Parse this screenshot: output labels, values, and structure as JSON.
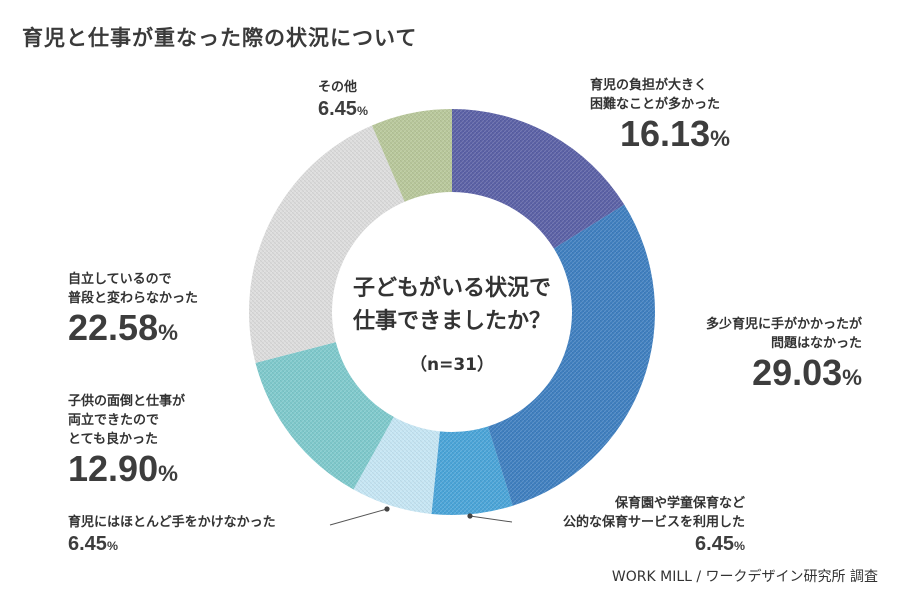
{
  "title": "育児と仕事が重なった際の状況について",
  "center": {
    "question_line1": "子どもがいる状況で",
    "question_line2": "仕事できましたか？",
    "n": "（n=31）"
  },
  "source": "WORK MILL / ワークデザイン研究所 調査",
  "chart_data": {
    "type": "pie",
    "variant": "donut",
    "title": "育児と仕事が重なった際の状況について",
    "slices": [
      {
        "label": "育児の負担が大きく困難なことが多かった",
        "value": 16.13,
        "display": "16.13",
        "color": "#5b61a6",
        "pattern": "crosshatch"
      },
      {
        "label": "多少育児に手がかかったが問題はなかった",
        "value": 29.03,
        "display": "29.03",
        "color": "#3f7fc0",
        "pattern": "crosshatch"
      },
      {
        "label": "保育園や学童保育など公的な保育サービスを利用した",
        "value": 6.45,
        "display": "6.45",
        "color": "#4aa4d8",
        "pattern": "crosshatch"
      },
      {
        "label": "育児にはほとんど手をかけなかった",
        "value": 6.45,
        "display": "6.45",
        "color": "#c6e6f4",
        "pattern": "crosshatch"
      },
      {
        "label": "子供の面倒と仕事が両立できたのでとても良かった",
        "value": 12.9,
        "display": "12.90",
        "color": "#7ec9cc",
        "pattern": "crosshatch"
      },
      {
        "label": "自立しているので普段と変わらなかった",
        "value": 22.58,
        "display": "22.58",
        "color": "#dcdcdc",
        "pattern": "crosshatch"
      },
      {
        "label": "その他",
        "value": 6.45,
        "display": "6.45",
        "color": "#b8c79a",
        "pattern": "crosshatch"
      }
    ]
  },
  "labels": [
    {
      "lines": [
        "育児の負担が大きく",
        "困難なことが多かった"
      ],
      "pct": "16.13",
      "unit": "%"
    },
    {
      "lines": [
        "多少育児に手がかかったが",
        "問題はなかった"
      ],
      "pct": "29.03",
      "unit": "%"
    },
    {
      "lines": [
        "保育園や学童保育など",
        "公的な保育サービスを利用した"
      ],
      "pct": "6.45",
      "unit": "%"
    },
    {
      "lines": [
        "育児にはほとんど手をかけなかった"
      ],
      "pct": "6.45",
      "unit": "%"
    },
    {
      "lines": [
        "子供の面倒と仕事が",
        "両立できたので",
        "とても良かった"
      ],
      "pct": "12.90",
      "unit": "%"
    },
    {
      "lines": [
        "自立しているので",
        "普段と変わらなかった"
      ],
      "pct": "22.58",
      "unit": "%"
    },
    {
      "lines": [
        "その他"
      ],
      "pct": "6.45",
      "unit": "%"
    }
  ]
}
